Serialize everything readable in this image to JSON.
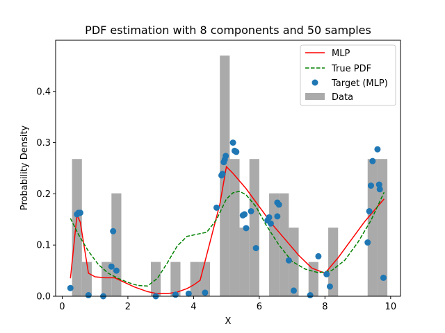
{
  "chart_data": {
    "type": "bar",
    "title": "PDF estimation with 8 components and 50 samples",
    "xlabel": "X",
    "ylabel": "Probability Density",
    "xlim": [
      -0.2,
      10.3
    ],
    "ylim": [
      0,
      0.5
    ],
    "xticks": [
      0,
      2,
      4,
      6,
      8,
      10
    ],
    "yticks": [
      0.0,
      0.1,
      0.2,
      0.3,
      0.4
    ],
    "grid": false,
    "legend_position": "top-right",
    "histogram": {
      "name": "Data",
      "color": "#aaaaaa",
      "bin_width": 0.3,
      "bins": [
        {
          "x0": 0.3,
          "value": 0.268
        },
        {
          "x0": 0.6,
          "value": 0.067
        },
        {
          "x0": 1.2,
          "value": 0.067
        },
        {
          "x0": 1.5,
          "value": 0.201
        },
        {
          "x0": 2.7,
          "value": 0.067
        },
        {
          "x0": 3.3,
          "value": 0.067
        },
        {
          "x0": 3.9,
          "value": 0.067
        },
        {
          "x0": 4.2,
          "value": 0.067
        },
        {
          "x0": 4.8,
          "value": 0.47
        },
        {
          "x0": 5.1,
          "value": 0.268
        },
        {
          "x0": 5.4,
          "value": 0.134
        },
        {
          "x0": 5.7,
          "value": 0.268
        },
        {
          "x0": 6.3,
          "value": 0.201
        },
        {
          "x0": 6.6,
          "value": 0.201
        },
        {
          "x0": 6.9,
          "value": 0.134
        },
        {
          "x0": 7.5,
          "value": 0.067
        },
        {
          "x0": 8.1,
          "value": 0.134
        },
        {
          "x0": 9.3,
          "value": 0.268
        },
        {
          "x0": 9.6,
          "value": 0.268
        }
      ]
    },
    "series": [
      {
        "name": "MLP",
        "type": "line",
        "color": "#ff0000",
        "dashed": false,
        "x": [
          0.25,
          0.45,
          0.55,
          0.8,
          1.0,
          1.3,
          1.6,
          1.8,
          2.2,
          2.6,
          2.9,
          3.2,
          3.5,
          3.8,
          4.0,
          4.2,
          4.8,
          5.0,
          5.2,
          5.6,
          6.0,
          6.4,
          6.8,
          7.2,
          7.6,
          8.0,
          8.4,
          8.8,
          9.2,
          9.6,
          9.8
        ],
        "y": [
          0.035,
          0.158,
          0.145,
          0.045,
          0.038,
          0.036,
          0.036,
          0.03,
          0.018,
          0.009,
          0.005,
          0.005,
          0.008,
          0.015,
          0.022,
          0.031,
          0.18,
          0.253,
          0.24,
          0.21,
          0.175,
          0.14,
          0.11,
          0.08,
          0.055,
          0.045,
          0.075,
          0.11,
          0.145,
          0.175,
          0.19
        ]
      },
      {
        "name": "True PDF",
        "type": "line",
        "color": "#008000",
        "dashed": true,
        "x": [
          0.25,
          0.5,
          0.8,
          1.1,
          1.4,
          1.7,
          2.0,
          2.3,
          2.6,
          2.9,
          3.2,
          3.5,
          3.8,
          4.1,
          4.4,
          4.7,
          5.0,
          5.2,
          5.4,
          5.6,
          5.9,
          6.2,
          6.6,
          7.0,
          7.4,
          7.8,
          8.2,
          8.6,
          9.0,
          9.4,
          9.8
        ],
        "y": [
          0.152,
          0.12,
          0.088,
          0.062,
          0.045,
          0.035,
          0.027,
          0.021,
          0.02,
          0.035,
          0.065,
          0.098,
          0.117,
          0.121,
          0.125,
          0.15,
          0.19,
          0.202,
          0.205,
          0.198,
          0.175,
          0.14,
          0.1,
          0.068,
          0.053,
          0.046,
          0.05,
          0.07,
          0.105,
          0.148,
          0.203
        ]
      },
      {
        "name": "Target (MLP)",
        "type": "scatter",
        "color": "#1f77b4",
        "points": [
          [
            0.25,
            0.016
          ],
          [
            0.45,
            0.16
          ],
          [
            0.5,
            0.163
          ],
          [
            0.55,
            0.163
          ],
          [
            0.8,
            0.002
          ],
          [
            1.25,
            0.0
          ],
          [
            1.5,
            0.058
          ],
          [
            1.55,
            0.127
          ],
          [
            1.65,
            0.05
          ],
          [
            2.85,
            0.0
          ],
          [
            3.45,
            0.003
          ],
          [
            3.85,
            0.005
          ],
          [
            4.35,
            0.007
          ],
          [
            4.7,
            0.173
          ],
          [
            4.85,
            0.236
          ],
          [
            4.88,
            0.239
          ],
          [
            4.92,
            0.262
          ],
          [
            4.95,
            0.267
          ],
          [
            4.98,
            0.274
          ],
          [
            5.2,
            0.3
          ],
          [
            5.25,
            0.284
          ],
          [
            5.3,
            0.282
          ],
          [
            5.5,
            0.158
          ],
          [
            5.55,
            0.16
          ],
          [
            5.6,
            0.133
          ],
          [
            5.75,
            0.166
          ],
          [
            5.9,
            0.094
          ],
          [
            6.25,
            0.148
          ],
          [
            6.3,
            0.154
          ],
          [
            6.35,
            0.142
          ],
          [
            6.55,
            0.156
          ],
          [
            6.55,
            0.183
          ],
          [
            6.6,
            0.179
          ],
          [
            6.9,
            0.07
          ],
          [
            7.05,
            0.011
          ],
          [
            7.55,
            0.002
          ],
          [
            7.8,
            0.078
          ],
          [
            8.05,
            0.043
          ],
          [
            8.15,
            0.019
          ],
          [
            9.3,
            0.105
          ],
          [
            9.35,
            0.166
          ],
          [
            9.4,
            0.216
          ],
          [
            9.45,
            0.264
          ],
          [
            9.6,
            0.287
          ],
          [
            9.65,
            0.218
          ],
          [
            9.67,
            0.209
          ],
          [
            9.78,
            0.036
          ]
        ]
      }
    ]
  }
}
